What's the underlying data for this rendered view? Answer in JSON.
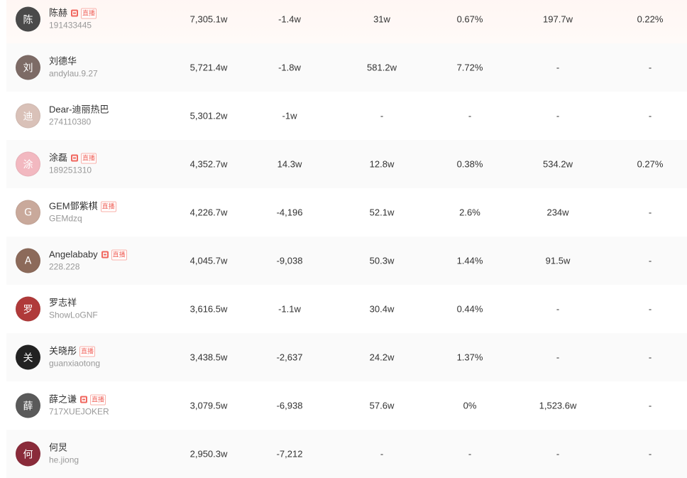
{
  "columns": [
    "followers",
    "follower_change",
    "likes",
    "like_rate",
    "shares",
    "share_rate"
  ],
  "rows": [
    {
      "name": "陈赫",
      "id": "191433445",
      "avatar_char": "陈",
      "avatar_color": "#4a4a4a",
      "badge_doc": true,
      "badge_red": "直播",
      "followers": "7,305.1w",
      "follower_change": "-1.4w",
      "likes": "31w",
      "like_rate": "0.67%",
      "shares": "197.7w",
      "share_rate": "0.22%"
    },
    {
      "name": "刘德华",
      "id": "andylau.9.27",
      "avatar_char": "刘",
      "avatar_color": "#7d6b66",
      "badge_doc": false,
      "badge_red": "",
      "followers": "5,721.4w",
      "follower_change": "-1.8w",
      "likes": "581.2w",
      "like_rate": "7.72%",
      "shares": "-",
      "share_rate": "-"
    },
    {
      "name": "Dear-迪丽热巴",
      "id": "274110380",
      "avatar_char": "迪",
      "avatar_color": "#d9c1b8",
      "badge_doc": false,
      "badge_red": "",
      "followers": "5,301.2w",
      "follower_change": "-1w",
      "likes": "-",
      "like_rate": "-",
      "shares": "-",
      "share_rate": "-"
    },
    {
      "name": "涂磊",
      "id": "189251310",
      "avatar_char": "涂",
      "avatar_color": "#f2b8c0",
      "badge_doc": true,
      "badge_red": "直播",
      "followers": "4,352.7w",
      "follower_change": "14.3w",
      "likes": "12.8w",
      "like_rate": "0.38%",
      "shares": "534.2w",
      "share_rate": "0.27%"
    },
    {
      "name": "GEM鄧紫棋",
      "id": "GEMdzq",
      "avatar_char": "G",
      "avatar_color": "#c9a99b",
      "badge_doc": false,
      "badge_red": "直播",
      "followers": "4,226.7w",
      "follower_change": "-4,196",
      "likes": "52.1w",
      "like_rate": "2.6%",
      "shares": "234w",
      "share_rate": "-"
    },
    {
      "name": "Angelababy",
      "id": "228.228",
      "avatar_char": "A",
      "avatar_color": "#8c6a5a",
      "badge_doc": true,
      "badge_red": "直播",
      "followers": "4,045.7w",
      "follower_change": "-9,038",
      "likes": "50.3w",
      "like_rate": "1.44%",
      "shares": "91.5w",
      "share_rate": "-"
    },
    {
      "name": "罗志祥",
      "id": "ShowLoGNF",
      "avatar_char": "罗",
      "avatar_color": "#b03a3a",
      "badge_doc": false,
      "badge_red": "",
      "followers": "3,616.5w",
      "follower_change": "-1.1w",
      "likes": "30.4w",
      "like_rate": "0.44%",
      "shares": "-",
      "share_rate": "-"
    },
    {
      "name": "关晓彤",
      "id": "guanxiaotong",
      "avatar_char": "关",
      "avatar_color": "#222222",
      "badge_doc": false,
      "badge_red": "直播",
      "followers": "3,438.5w",
      "follower_change": "-2,637",
      "likes": "24.2w",
      "like_rate": "1.37%",
      "shares": "-",
      "share_rate": "-"
    },
    {
      "name": "薛之谦",
      "id": "717XUEJOKER",
      "avatar_char": "薛",
      "avatar_color": "#5a5a5a",
      "badge_doc": true,
      "badge_red": "直播",
      "followers": "3,079.5w",
      "follower_change": "-6,938",
      "likes": "57.6w",
      "like_rate": "0%",
      "shares": "1,523.6w",
      "share_rate": "-"
    },
    {
      "name": "何炅",
      "id": "he.jiong",
      "avatar_char": "何",
      "avatar_color": "#8a2b3a",
      "badge_doc": false,
      "badge_red": "",
      "followers": "2,950.3w",
      "follower_change": "-7,212",
      "likes": "-",
      "like_rate": "-",
      "shares": "-",
      "share_rate": "-"
    }
  ]
}
